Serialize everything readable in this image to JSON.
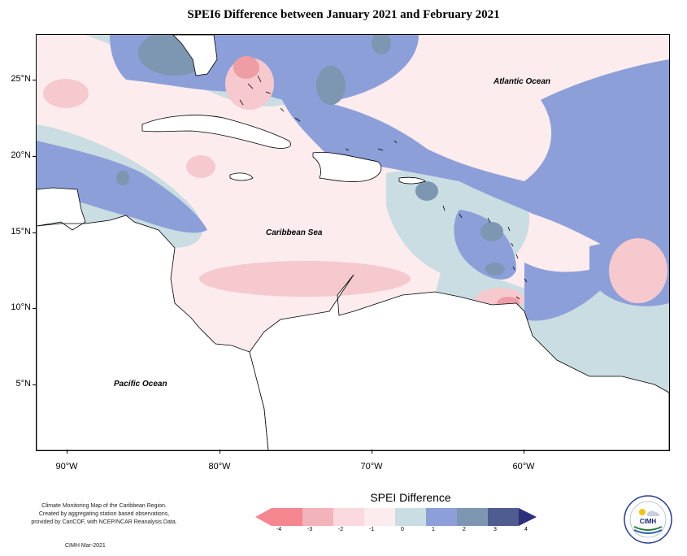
{
  "title": "SPEI6 Difference between January 2021 and February 2021",
  "ocean_labels": {
    "atlantic": "Atlantic Ocean",
    "caribbean": "Caribbean Sea",
    "pacific": "Pacific Ocean"
  },
  "lat_labels": [
    "25°N",
    "20°N",
    "15°N",
    "10°N",
    "5°N"
  ],
  "lon_labels": [
    "90°W",
    "80°W",
    "70°W",
    "60°W"
  ],
  "credits": {
    "line1": "Climate Monitoring Map of the Caribbean Region.",
    "line2": "Created by aggregating station based observations,",
    "line3": "provided by CariCOF, with NCEP/NCAR Reanalysis Data.",
    "issuer": "CIMH Mar-2021"
  },
  "legend": {
    "title": "SPEI Difference",
    "ticks": [
      "-4",
      "-3",
      "-2",
      "-1",
      "0",
      "1",
      "2",
      "3",
      "4"
    ],
    "colors": [
      "#f4868f",
      "#f2b3ba",
      "#fbd9de",
      "#fdecee",
      "#c9dde2",
      "#8c9fd9",
      "#7d97b2",
      "#4f5c8f",
      "#2c2f7a"
    ]
  },
  "map_colors": {
    "land": "#ffffff",
    "dry_mild": "#fdecee",
    "dry": "#f6c9cf",
    "dry_strong": "#ee9da4",
    "neutral": "#c9dde2",
    "wet": "#8c9fd9",
    "wet_strong": "#7d97b2"
  },
  "logo": {
    "text": "CIMH"
  }
}
